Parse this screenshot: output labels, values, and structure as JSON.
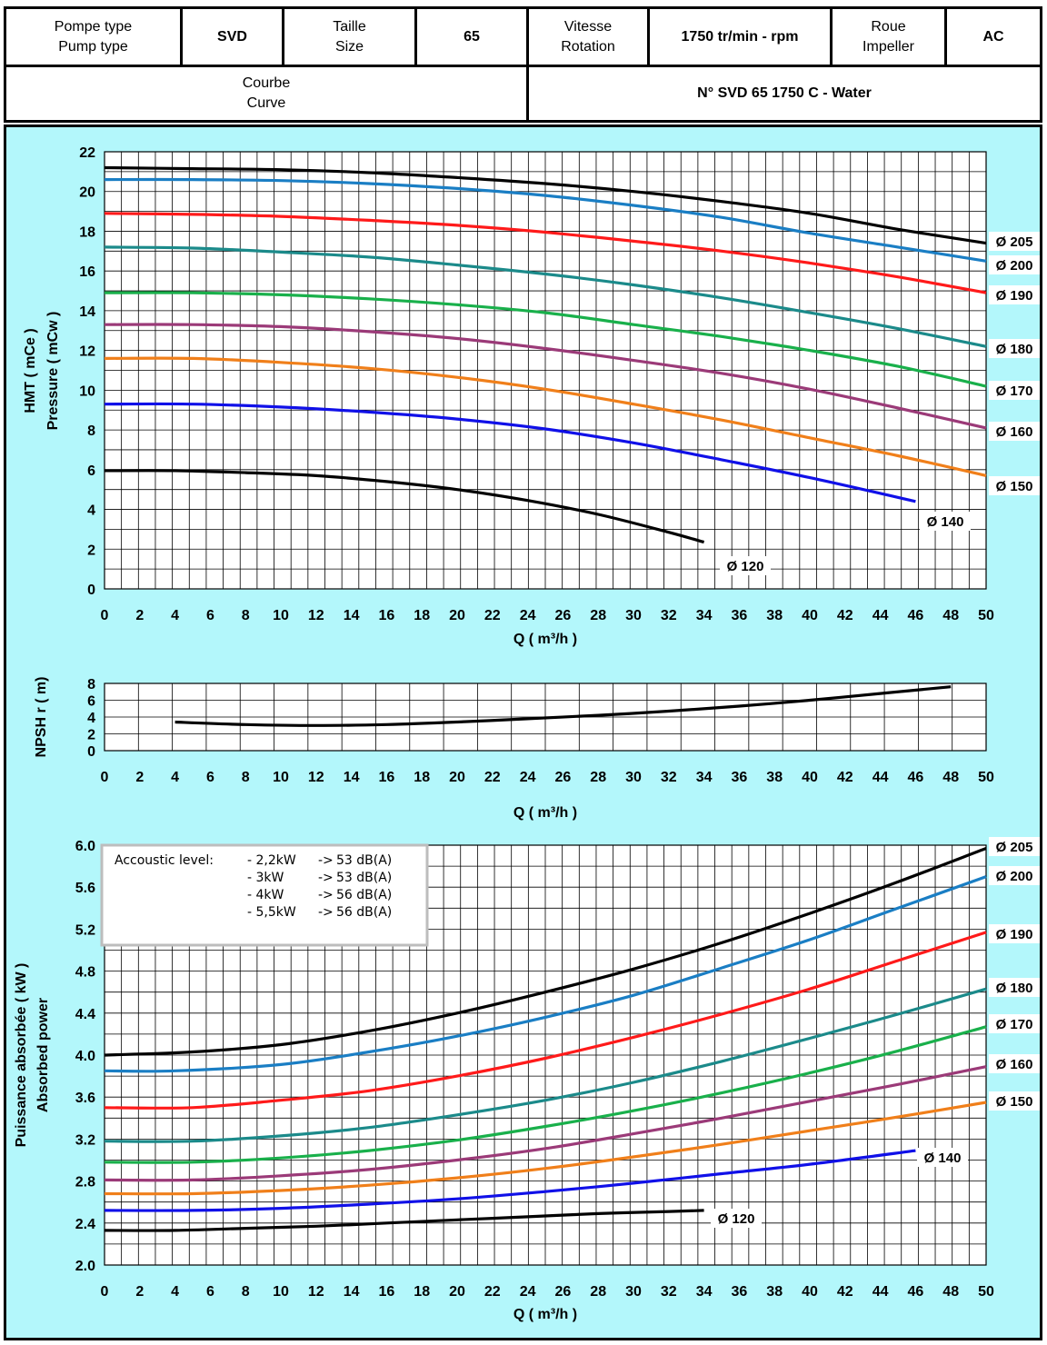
{
  "header": {
    "pump_type_label": [
      "Pompe type",
      "Pump type"
    ],
    "pump_type_value": "SVD",
    "size_label": [
      "Taille",
      "Size"
    ],
    "size_value": "65",
    "speed_label": [
      "Vitesse",
      "Rotation"
    ],
    "speed_value": "1750 tr/min - rpm",
    "impeller_label": [
      "Roue",
      "Impeller"
    ],
    "impeller_value": "AC",
    "curve_label": [
      "Courbe",
      "Curve"
    ],
    "curve_value": "N° SVD 65 1750 C - Water"
  },
  "colors": {
    "background": "#b3f7fb",
    "grid": "#000000",
    "d205": "#000000",
    "d200": "#1a7ec4",
    "d190": "#ff1a1a",
    "d180": "#1b8a8a",
    "d170": "#19b04b",
    "d160": "#9b3a78",
    "d150": "#f07f1a",
    "d140": "#1010e8",
    "d120": "#000000",
    "npsh": "#000000"
  },
  "chart_data": [
    {
      "type": "line",
      "title": "",
      "xlabel": "Q ( m³/h )",
      "ylabel": [
        "HMT ( mCe )",
        "Pressure ( mCw )"
      ],
      "xlim": [
        0,
        50
      ],
      "ylim": [
        0,
        22
      ],
      "x_ticks": [
        0,
        2,
        4,
        6,
        8,
        10,
        12,
        14,
        16,
        18,
        20,
        22,
        24,
        26,
        28,
        30,
        32,
        34,
        36,
        38,
        40,
        42,
        44,
        46,
        48,
        50
      ],
      "y_ticks": [
        0,
        2,
        4,
        6,
        8,
        10,
        12,
        14,
        16,
        18,
        20,
        22
      ],
      "grid": true,
      "series": [
        {
          "name": "Ø 205",
          "color_key": "d205",
          "x": [
            0,
            5,
            10,
            15,
            20,
            25,
            30,
            35,
            40,
            45,
            50
          ],
          "y": [
            21.2,
            21.15,
            21.1,
            20.95,
            20.7,
            20.4,
            20.0,
            19.5,
            18.9,
            18.1,
            17.4
          ]
        },
        {
          "name": "Ø 200",
          "color_key": "d200",
          "x": [
            0,
            5,
            10,
            15,
            20,
            25,
            30,
            35,
            40,
            45,
            50
          ],
          "y": [
            20.6,
            20.6,
            20.55,
            20.4,
            20.15,
            19.8,
            19.3,
            18.7,
            17.9,
            17.2,
            16.5
          ]
        },
        {
          "name": "Ø 190",
          "color_key": "d190",
          "x": [
            0,
            5,
            10,
            15,
            20,
            25,
            30,
            35,
            40,
            45,
            50
          ],
          "y": [
            18.9,
            18.85,
            18.75,
            18.55,
            18.3,
            17.95,
            17.5,
            17.0,
            16.4,
            15.7,
            14.9
          ]
        },
        {
          "name": "Ø 180",
          "color_key": "d180",
          "x": [
            0,
            5,
            10,
            15,
            20,
            25,
            30,
            35,
            40,
            45,
            50
          ],
          "y": [
            17.2,
            17.15,
            16.95,
            16.7,
            16.3,
            15.85,
            15.3,
            14.65,
            13.9,
            13.1,
            12.2
          ]
        },
        {
          "name": "Ø 170",
          "color_key": "d170",
          "x": [
            0,
            5,
            10,
            15,
            20,
            25,
            30,
            35,
            40,
            45,
            50
          ],
          "y": [
            14.9,
            14.9,
            14.8,
            14.6,
            14.3,
            13.9,
            13.3,
            12.7,
            12.0,
            11.2,
            10.2
          ]
        },
        {
          "name": "Ø 160",
          "color_key": "d160",
          "x": [
            0,
            5,
            10,
            15,
            20,
            25,
            30,
            35,
            40,
            45,
            50
          ],
          "y": [
            13.3,
            13.3,
            13.2,
            12.95,
            12.6,
            12.1,
            11.5,
            10.85,
            10.05,
            9.1,
            8.1
          ]
        },
        {
          "name": "Ø 150",
          "color_key": "d150",
          "x": [
            0,
            5,
            10,
            15,
            20,
            25,
            30,
            35,
            40,
            45,
            50
          ],
          "y": [
            11.6,
            11.6,
            11.4,
            11.1,
            10.65,
            10.05,
            9.3,
            8.5,
            7.6,
            6.7,
            5.7
          ]
        },
        {
          "name": "Ø 140",
          "color_key": "d140",
          "x": [
            0,
            5,
            10,
            15,
            20,
            25,
            30,
            35,
            40,
            46
          ],
          "y": [
            9.3,
            9.3,
            9.15,
            8.9,
            8.55,
            8.05,
            7.35,
            6.5,
            5.6,
            4.4
          ]
        },
        {
          "name": "Ø 120",
          "color_key": "d120",
          "x": [
            0,
            4,
            8,
            12,
            16,
            20,
            24,
            28,
            32,
            34
          ],
          "y": [
            5.95,
            5.95,
            5.85,
            5.7,
            5.4,
            5.0,
            4.45,
            3.75,
            2.85,
            2.35
          ]
        }
      ]
    },
    {
      "type": "line",
      "title": "",
      "xlabel": "Q ( m³/h )",
      "ylabel": [
        "NPSH r ( m)"
      ],
      "xlim": [
        0,
        50
      ],
      "ylim": [
        0,
        8
      ],
      "x_ticks": [
        0,
        2,
        4,
        6,
        8,
        10,
        12,
        14,
        16,
        18,
        20,
        22,
        24,
        26,
        28,
        30,
        32,
        34,
        36,
        38,
        40,
        42,
        44,
        46,
        48,
        50
      ],
      "y_ticks": [
        0,
        2,
        4,
        6,
        8
      ],
      "grid": true,
      "series": [
        {
          "color_key": "npsh",
          "x": [
            4,
            8,
            12,
            16,
            20,
            24,
            28,
            32,
            36,
            40,
            44,
            48
          ],
          "y": [
            3.4,
            3.1,
            3.0,
            3.1,
            3.4,
            3.8,
            4.2,
            4.7,
            5.3,
            6.0,
            6.8,
            7.6
          ]
        }
      ]
    },
    {
      "type": "line",
      "title": "",
      "xlabel": "Q ( m³/h )",
      "ylabel": [
        "Puissance absorbée ( kW )",
        "Absorbed power"
      ],
      "xlim": [
        0,
        50
      ],
      "ylim": [
        2.0,
        6.0
      ],
      "x_ticks": [
        0,
        2,
        4,
        6,
        8,
        10,
        12,
        14,
        16,
        18,
        20,
        22,
        24,
        26,
        28,
        30,
        32,
        34,
        36,
        38,
        40,
        42,
        44,
        46,
        48,
        50
      ],
      "y_ticks": [
        "2.0",
        "2.4",
        "2.8",
        "3.2",
        "3.6",
        "4.0",
        "4.4",
        "4.8",
        "5.2",
        "5.6",
        "6.0"
      ],
      "grid": true,
      "annotation": {
        "title": "Accoustic level:",
        "rows": [
          [
            "- 2,2kW",
            "->",
            "53 dB(A)"
          ],
          [
            "- 3kW",
            "->",
            "53 dB(A)"
          ],
          [
            "- 4kW",
            "->",
            "56 dB(A)"
          ],
          [
            "- 5,5kW",
            "->",
            "56 dB(A)"
          ]
        ]
      },
      "series": [
        {
          "name": "Ø 205",
          "color_key": "d205",
          "x": [
            0,
            5,
            10,
            15,
            20,
            25,
            30,
            35,
            40,
            45,
            50
          ],
          "y": [
            4.0,
            4.03,
            4.1,
            4.23,
            4.4,
            4.6,
            4.82,
            5.07,
            5.35,
            5.65,
            5.97
          ]
        },
        {
          "name": "Ø 200",
          "color_key": "d200",
          "x": [
            0,
            4,
            10,
            15,
            20,
            25,
            30,
            35,
            40,
            45,
            50
          ],
          "y": [
            3.85,
            3.85,
            3.91,
            4.03,
            4.18,
            4.36,
            4.57,
            4.83,
            5.1,
            5.4,
            5.7
          ]
        },
        {
          "name": "Ø 190",
          "color_key": "d190",
          "x": [
            0,
            5,
            10,
            15,
            20,
            25,
            30,
            35,
            40,
            45,
            50
          ],
          "y": [
            3.5,
            3.5,
            3.57,
            3.66,
            3.8,
            3.97,
            4.17,
            4.39,
            4.63,
            4.9,
            5.17
          ]
        },
        {
          "name": "Ø 180",
          "color_key": "d180",
          "x": [
            0,
            5,
            10,
            15,
            20,
            25,
            30,
            35,
            40,
            45,
            50
          ],
          "y": [
            3.18,
            3.18,
            3.23,
            3.31,
            3.43,
            3.57,
            3.74,
            3.94,
            4.16,
            4.39,
            4.63
          ]
        },
        {
          "name": "Ø 170",
          "color_key": "d170",
          "x": [
            0,
            5,
            10,
            15,
            20,
            25,
            30,
            35,
            40,
            45,
            50
          ],
          "y": [
            2.98,
            2.98,
            3.02,
            3.09,
            3.19,
            3.32,
            3.47,
            3.64,
            3.83,
            4.04,
            4.27
          ]
        },
        {
          "name": "Ø 160",
          "color_key": "d160",
          "x": [
            0,
            5,
            10,
            15,
            20,
            25,
            30,
            35,
            40,
            45,
            50
          ],
          "y": [
            2.81,
            2.81,
            2.85,
            2.91,
            3.0,
            3.11,
            3.25,
            3.4,
            3.56,
            3.72,
            3.89
          ]
        },
        {
          "name": "Ø 150",
          "color_key": "d150",
          "x": [
            0,
            5,
            10,
            15,
            20,
            25,
            30,
            35,
            40,
            45,
            50
          ],
          "y": [
            2.68,
            2.68,
            2.71,
            2.76,
            2.83,
            2.92,
            3.03,
            3.15,
            3.28,
            3.41,
            3.55
          ]
        },
        {
          "name": "Ø 140",
          "color_key": "d140",
          "x": [
            0,
            5,
            10,
            15,
            20,
            25,
            30,
            35,
            40,
            46
          ],
          "y": [
            2.52,
            2.52,
            2.54,
            2.58,
            2.63,
            2.7,
            2.78,
            2.87,
            2.96,
            3.09
          ]
        },
        {
          "name": "Ø 120",
          "color_key": "d120",
          "x": [
            0,
            4,
            8,
            12,
            16,
            20,
            24,
            28,
            32,
            34
          ],
          "y": [
            2.33,
            2.33,
            2.35,
            2.37,
            2.4,
            2.43,
            2.46,
            2.49,
            2.51,
            2.52
          ]
        }
      ]
    }
  ]
}
